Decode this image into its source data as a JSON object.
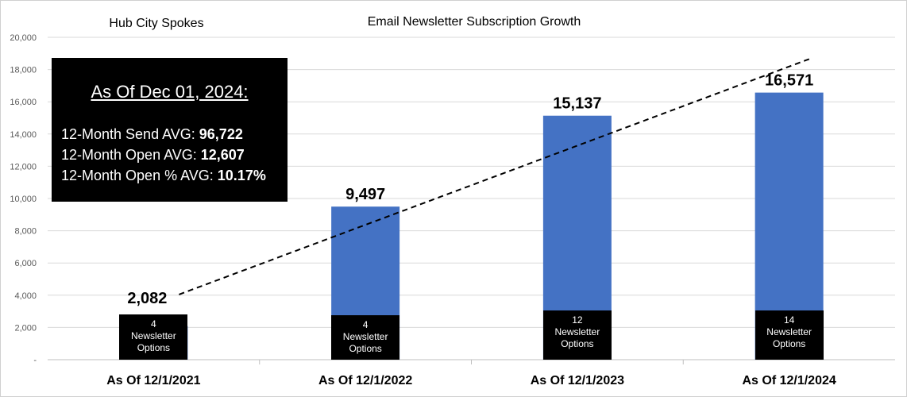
{
  "chart_data": {
    "type": "bar",
    "title": "Email Newsletter Subscription Growth",
    "subtitle": "Hub City Spokes",
    "categories": [
      "As Of 12/1/2021",
      "As Of 12/1/2022",
      "As Of 12/1/2023",
      "As Of 12/1/2024"
    ],
    "values": [
      2082,
      9497,
      15137,
      16571
    ],
    "data_labels": [
      "2,082",
      "9,497",
      "15,137",
      "16,571"
    ],
    "newsletter_options": [
      {
        "count": "4",
        "line1": "Newsletter",
        "line2": "Options"
      },
      {
        "count": "4",
        "line1": "Newsletter",
        "line2": "Options"
      },
      {
        "count": "12",
        "line1": "Newsletter",
        "line2": "Options"
      },
      {
        "count": "14",
        "line1": "Newsletter",
        "line2": "Options"
      }
    ],
    "ylim": [
      0,
      20000
    ],
    "yticks": [
      0,
      2000,
      4000,
      6000,
      8000,
      10000,
      12000,
      14000,
      16000,
      18000,
      20000
    ],
    "ytick_labels": [
      "-",
      "2,000",
      "4,000",
      "6,000",
      "8,000",
      "10,000",
      "12,000",
      "14,000",
      "16,000",
      "18,000",
      "20,000"
    ],
    "grid": true,
    "trendline": "linear",
    "colors": {
      "bar": "#4472C4",
      "label_box": "#000000",
      "grid": "#d9d9d9",
      "trendline": "#000000"
    }
  },
  "summary": {
    "heading": "As Of Dec 01, 2024:",
    "rows": [
      {
        "label": "12-Month Send AVG: ",
        "value": "96,722"
      },
      {
        "label": "12-Month Open AVG: ",
        "value": "12,607"
      },
      {
        "label": "12-Month Open % AVG: ",
        "value": "10.17%"
      }
    ]
  }
}
